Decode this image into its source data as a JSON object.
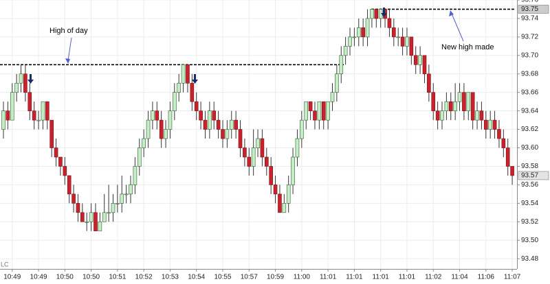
{
  "chart_data": {
    "type": "candlestick",
    "categories": [
      null,
      null,
      "10:49",
      null,
      null,
      null,
      null,
      null,
      "10:49",
      null,
      null,
      null,
      null,
      null,
      "10:50",
      null,
      null,
      null,
      null,
      null,
      "10:50",
      null,
      null,
      null,
      null,
      null,
      "10:51",
      null,
      null,
      null,
      null,
      null,
      "10:52",
      null,
      null,
      null,
      null,
      null,
      "10:53",
      null,
      null,
      null,
      null,
      null,
      "10:54",
      null,
      null,
      null,
      null,
      null,
      "10:55",
      null,
      null,
      null,
      null,
      null,
      "10:57",
      null,
      null,
      null,
      null,
      null,
      "10:59",
      null,
      null,
      null,
      null,
      null,
      "11:00",
      null,
      null,
      null,
      null,
      null,
      "11:01",
      null,
      null,
      null,
      null,
      null,
      "11:01",
      null,
      null,
      null,
      null,
      null,
      "11:01",
      null,
      null,
      null,
      null,
      null,
      "11:01",
      null,
      null,
      null,
      null,
      null,
      "11:02",
      null,
      null,
      null,
      null,
      null,
      "11:04",
      null,
      null,
      null,
      null,
      null,
      "11:06",
      null,
      null,
      null,
      null,
      null,
      "11:07"
    ],
    "open": [
      93.62,
      93.64,
      93.63,
      93.66,
      93.67,
      93.68,
      93.66,
      93.64,
      93.63,
      93.63,
      93.65,
      93.63,
      93.6,
      93.59,
      93.58,
      93.57,
      93.55,
      93.54,
      93.53,
      93.52,
      93.52,
      93.53,
      93.51,
      93.52,
      93.53,
      93.53,
      93.54,
      93.54,
      93.55,
      93.55,
      93.56,
      93.58,
      93.6,
      93.61,
      93.63,
      93.64,
      93.63,
      93.61,
      93.62,
      93.64,
      93.66,
      93.67,
      93.69,
      93.67,
      93.65,
      93.64,
      93.63,
      93.62,
      93.64,
      93.63,
      93.62,
      93.61,
      93.62,
      93.63,
      93.62,
      93.6,
      93.59,
      93.58,
      93.6,
      93.61,
      93.59,
      93.58,
      93.56,
      93.55,
      93.53,
      93.54,
      93.56,
      93.59,
      93.61,
      93.63,
      93.65,
      93.64,
      93.63,
      93.65,
      93.63,
      93.65,
      93.66,
      93.68,
      93.7,
      93.71,
      93.72,
      93.72,
      93.73,
      93.72,
      93.74,
      93.75,
      93.74,
      93.75,
      93.74,
      93.73,
      93.72,
      93.72,
      93.71,
      93.72,
      93.7,
      93.69,
      93.7,
      93.68,
      93.66,
      93.64,
      93.63,
      93.64,
      93.65,
      93.64,
      93.65,
      93.66,
      93.64,
      93.66,
      93.63,
      93.64,
      93.63,
      93.62,
      93.63,
      93.62,
      93.61,
      93.6,
      93.58
    ],
    "high": [
      93.65,
      93.65,
      93.67,
      93.68,
      93.69,
      93.69,
      93.67,
      93.65,
      93.64,
      93.65,
      93.65,
      93.63,
      93.61,
      93.59,
      93.59,
      93.57,
      93.56,
      93.55,
      93.54,
      93.53,
      93.54,
      93.54,
      93.53,
      93.55,
      93.56,
      93.55,
      93.56,
      93.57,
      93.56,
      93.57,
      93.59,
      93.61,
      93.62,
      93.64,
      93.65,
      93.65,
      93.64,
      93.63,
      93.65,
      93.67,
      93.68,
      93.69,
      93.69,
      93.68,
      93.66,
      93.65,
      93.64,
      93.65,
      93.65,
      93.64,
      93.63,
      93.63,
      93.64,
      93.64,
      93.63,
      93.61,
      93.6,
      93.62,
      93.62,
      93.62,
      93.6,
      93.59,
      93.57,
      93.56,
      93.55,
      93.57,
      93.6,
      93.62,
      93.64,
      93.65,
      93.65,
      93.65,
      93.65,
      93.65,
      93.65,
      93.67,
      93.69,
      93.71,
      93.72,
      93.73,
      93.73,
      93.74,
      93.74,
      93.75,
      93.75,
      93.75,
      93.75,
      93.75,
      93.75,
      93.74,
      93.73,
      93.73,
      93.73,
      93.72,
      93.71,
      93.71,
      93.7,
      93.69,
      93.67,
      93.65,
      93.65,
      93.66,
      93.66,
      93.67,
      93.67,
      93.67,
      93.66,
      93.66,
      93.65,
      93.65,
      93.64,
      93.64,
      93.64,
      93.63,
      93.62,
      93.61,
      93.58
    ],
    "low": [
      93.61,
      93.62,
      93.63,
      93.65,
      93.66,
      93.65,
      93.63,
      93.62,
      93.62,
      93.62,
      93.62,
      93.59,
      93.58,
      93.57,
      93.56,
      93.54,
      93.53,
      93.52,
      93.52,
      93.51,
      93.51,
      93.51,
      93.51,
      93.52,
      93.52,
      93.52,
      93.53,
      93.53,
      93.54,
      93.54,
      93.55,
      93.57,
      93.59,
      93.6,
      93.62,
      93.62,
      93.6,
      93.6,
      93.61,
      93.63,
      93.65,
      93.66,
      93.66,
      93.64,
      93.63,
      93.62,
      93.61,
      93.61,
      93.62,
      93.61,
      93.6,
      93.6,
      93.61,
      93.61,
      93.59,
      93.58,
      93.57,
      93.57,
      93.59,
      93.58,
      93.57,
      93.55,
      93.54,
      93.53,
      93.53,
      93.53,
      93.55,
      93.58,
      93.6,
      93.62,
      93.63,
      93.62,
      93.62,
      93.62,
      93.62,
      93.64,
      93.65,
      93.67,
      93.69,
      93.7,
      93.71,
      93.71,
      93.71,
      93.71,
      93.73,
      93.73,
      93.73,
      93.73,
      93.72,
      93.71,
      93.71,
      93.7,
      93.7,
      93.69,
      93.68,
      93.68,
      93.67,
      93.65,
      93.63,
      93.62,
      93.62,
      93.63,
      93.63,
      93.63,
      93.64,
      93.63,
      93.63,
      93.62,
      93.62,
      93.62,
      93.61,
      93.61,
      93.61,
      93.6,
      93.59,
      93.57,
      93.56
    ],
    "close": [
      93.64,
      93.63,
      93.66,
      93.67,
      93.68,
      93.66,
      93.64,
      93.63,
      93.63,
      93.65,
      93.63,
      93.6,
      93.59,
      93.58,
      93.57,
      93.55,
      93.54,
      93.53,
      93.52,
      93.52,
      93.53,
      93.51,
      93.52,
      93.53,
      93.53,
      93.54,
      93.54,
      93.55,
      93.55,
      93.56,
      93.58,
      93.6,
      93.61,
      93.63,
      93.64,
      93.63,
      93.61,
      93.62,
      93.64,
      93.66,
      93.67,
      93.69,
      93.67,
      93.65,
      93.64,
      93.63,
      93.62,
      93.64,
      93.63,
      93.62,
      93.61,
      93.62,
      93.63,
      93.62,
      93.6,
      93.59,
      93.58,
      93.6,
      93.61,
      93.59,
      93.58,
      93.56,
      93.55,
      93.53,
      93.54,
      93.56,
      93.59,
      93.61,
      93.63,
      93.65,
      93.64,
      93.63,
      93.65,
      93.63,
      93.65,
      93.66,
      93.68,
      93.7,
      93.71,
      93.72,
      93.72,
      93.73,
      93.72,
      93.74,
      93.75,
      93.74,
      93.75,
      93.74,
      93.73,
      93.72,
      93.72,
      93.71,
      93.72,
      93.7,
      93.69,
      93.7,
      93.68,
      93.66,
      93.64,
      93.63,
      93.64,
      93.65,
      93.64,
      93.65,
      93.66,
      93.64,
      93.66,
      93.63,
      93.64,
      93.63,
      93.62,
      93.63,
      93.62,
      93.61,
      93.6,
      93.58,
      93.57
    ],
    "up_color": "#c6eec6",
    "down_color": "#c8232c",
    "ylim": [
      93.469,
      93.76
    ],
    "yticks": [
      93.48,
      {
        "value": 93.5,
        "label": "93.50"
      },
      93.52,
      93.54,
      93.56,
      93.58,
      {
        "value": 93.6,
        "label": "93.60"
      },
      93.62,
      93.64,
      93.66,
      93.68,
      {
        "value": 93.7,
        "label": "93.70"
      },
      93.72,
      93.74,
      93.76
    ],
    "grid": true,
    "reference_lines": [
      {
        "value": 93.69
      },
      {
        "value": 93.75
      }
    ],
    "price_labels": [
      {
        "value": 93.75,
        "label": "93.75",
        "color": "#cccccc"
      },
      {
        "value": 93.57,
        "label": "93.57",
        "color": "#e4e4e4"
      }
    ],
    "annotations": [
      "High of day",
      "New high made"
    ],
    "corner_label": "LC"
  }
}
